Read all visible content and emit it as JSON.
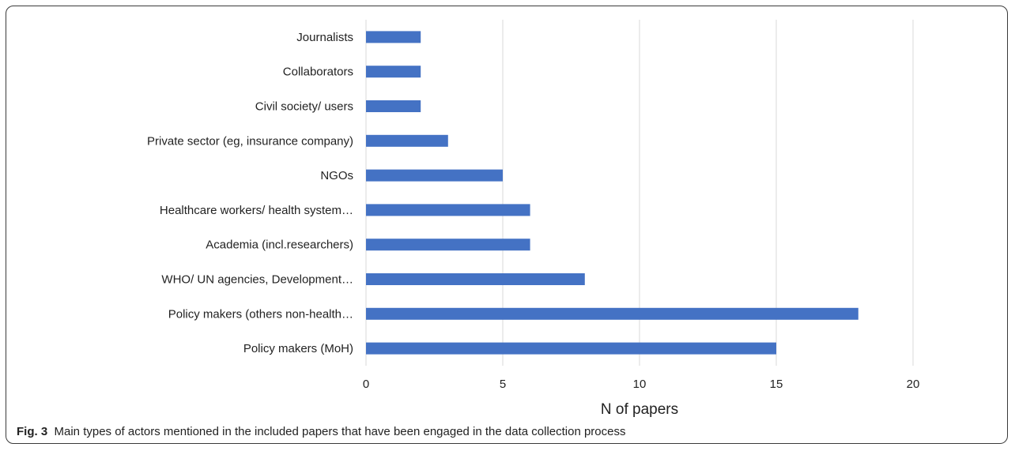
{
  "chart_data": {
    "type": "bar",
    "orientation": "horizontal",
    "categories": [
      "Journalists",
      "Collaborators",
      "Civil society/ users",
      "Private sector (eg, insurance company)",
      "NGOs",
      "Healthcare workers/ health system…",
      "Academia (incl.researchers)",
      "WHO/ UN agencies, Development…",
      "Policy makers (others non-health…",
      "Policy makers (MoH)"
    ],
    "values": [
      2,
      2,
      2,
      3,
      5,
      6,
      6,
      8,
      18,
      15
    ],
    "x_ticks": [
      "0",
      "5",
      "10",
      "15",
      "20"
    ],
    "xlim": [
      0,
      20
    ],
    "xlabel": "N of papers",
    "ylabel": "",
    "grid": "vertical",
    "legend": "none",
    "bar_color": "#4472c4",
    "grid_color": "#d9d9d9"
  },
  "caption": {
    "label": "Fig. 3",
    "text": "Main types of actors mentioned in the included papers that have been engaged in the data collection process"
  }
}
